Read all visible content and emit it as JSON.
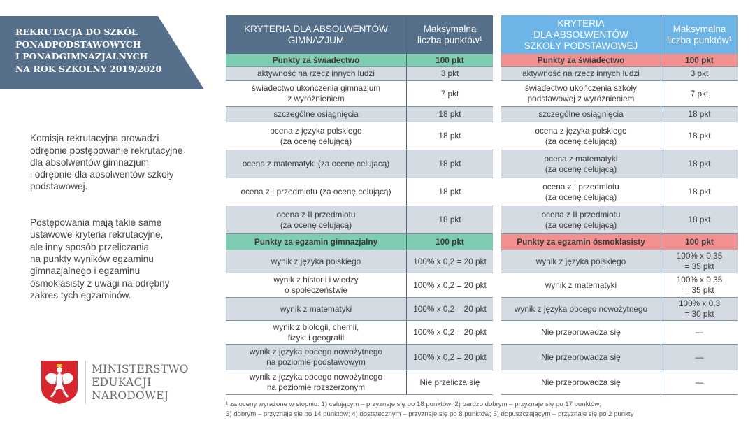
{
  "banner": {
    "title": "REKRUTACJA DO SZKÓŁ\nPONADPODSTAWOWYCH\nI PONADGIMNAZJALNYCH\nNA ROK SZKOLNY 2019/2020"
  },
  "intro": [
    "Komisja rekrutacyjna prowadzi\nodrębnie postępowanie rekrutacyjne\ndla absolwentów gimnazjum\ni odrębnie dla absolwentów szkoły\npodstawowej.",
    "Postępowania mają takie same\nustawowe kryteria rekrutacyjne,\nale inny sposób przeliczania\nna punkty wyników egzaminu\ngimnazjalnego i egzaminu\nósmoklasisty z uwagi na odrębny\nzakres tych egzaminów."
  ],
  "logo": {
    "text": "MINISTERSTWO\nEDUKACJI\nNARODOWEJ",
    "emblem": "polish-eagle-emblem"
  },
  "colors": {
    "header_left": "#56708c",
    "header_right": "#6cb5e6",
    "section_left": "#7fcdb1",
    "section_right": "#f29090",
    "row_gray": "#d4dbe3"
  },
  "tables": [
    {
      "header": [
        "KRYTERIA DLA ABSOLWENTÓW\nGIMNAZJUM",
        "Maksymalna\nliczba punktów¹"
      ],
      "rows": [
        [
          "Punkty za świadectwo",
          "100 pkt"
        ],
        [
          "aktywność na rzecz innych ludzi",
          "3 pkt"
        ],
        [
          "świadectwo ukończenia gimnazjum\nz wyróżnieniem",
          "7 pkt"
        ],
        [
          "szczególne osiągnięcia",
          "18 pkt"
        ],
        [
          "ocena z języka polskiego\n(za ocenę celującą)",
          "18 pkt"
        ],
        [
          "ocena z matematyki (za ocenę celującą)",
          "18 pkt"
        ],
        [
          "ocena z I przedmiotu (za ocenę celującą)",
          "18 pkt"
        ],
        [
          "ocena z II przedmiotu\n(za ocenę celującą)",
          "18 pkt"
        ],
        [
          "Punkty za egzamin gimnazjalny",
          "100 pkt"
        ],
        [
          "wynik z języka polskiego",
          "100% x 0,2 = 20 pkt"
        ],
        [
          "wynik z historii i wiedzy\no społeczeństwie",
          "100% x 0,2 = 20 pkt"
        ],
        [
          "wynik z matematyki",
          "100% x 0,2 = 20 pkt"
        ],
        [
          "wynik z biologii, chemii,\nfizyki i geografii",
          "100% x 0,2 = 20 pkt"
        ],
        [
          "wynik z języka obcego nowożytnego\nna poziomie podstawowym",
          "100% x 0,2 = 20 pkt"
        ],
        [
          "wynik z języka obcego nowożytnego\nna poziomie rozszerzonym",
          "Nie przelicza się"
        ]
      ]
    },
    {
      "header": [
        "KRYTERIA\nDLA ABSOLWENTÓW\nSZKOŁY PODSTAWOWEJ",
        "Maksymalna\nliczba punktów¹"
      ],
      "rows": [
        [
          "Punkty za świadectwo",
          "100 pkt"
        ],
        [
          "aktywność na rzecz innych ludzi",
          "3 pkt"
        ],
        [
          "świadectwo ukończenia szkoły\npodstawowej z wyróżnieniem",
          "7 pkt"
        ],
        [
          "szczególne osiągnięcia",
          "18 pkt"
        ],
        [
          "ocena z języka polskiego\n(za ocenę celującą)",
          "18 pkt"
        ],
        [
          "ocena z matematyki\n(za ocenę celującą)",
          "18 pkt"
        ],
        [
          "ocena z I przedmiotu\n(za ocenę celującą)",
          "18 pkt"
        ],
        [
          "ocena z II przedmiotu\n(za ocenę celującą)",
          "18 pkt"
        ],
        [
          "Punkty za egzamin ósmoklasisty",
          "100 pkt"
        ],
        [
          "wynik z języka polskiego",
          "100% x 0,35\n= 35 pkt"
        ],
        [
          "wynik z matematyki",
          "100% x 0,35\n= 35 pkt"
        ],
        [
          "wynik z języka obcego nowożytnego",
          "100% x 0,3\n= 30 pkt"
        ],
        [
          "Nie przeprowadza się",
          "—"
        ],
        [
          "Nie przeprowadza się",
          "—"
        ],
        [
          "Nie przeprowadza się",
          "—"
        ]
      ]
    }
  ],
  "footnote": "¹ za oceny wyrażone w stopniu: 1) celującym – przyznaje się po 18 punktów; 2) bardzo dobrym – przyznaje się po 17 punktów;\n3) dobrym – przyznaje się po 14 punktów; 4) dostatecznym – przyznaje się po 8 punktów; 5) dopuszczającym – przyznaje się po 2 punkty"
}
